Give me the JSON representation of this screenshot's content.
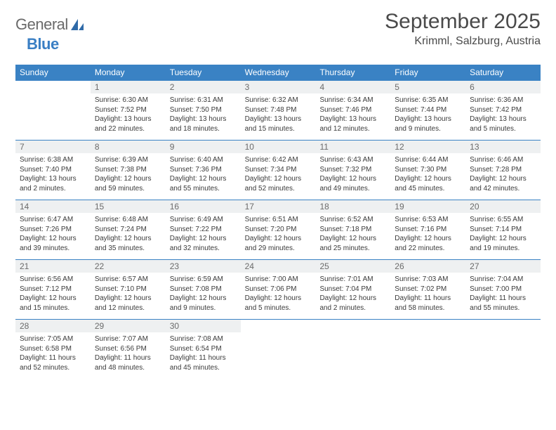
{
  "logo": {
    "word1": "General",
    "word2": "Blue"
  },
  "header": {
    "month_title": "September 2025",
    "location": "Krimml, Salzburg, Austria"
  },
  "colors": {
    "accent": "#3a82c4",
    "daynum_bg": "#eef0f1",
    "text": "#3a3a3a"
  },
  "calendar": {
    "day_names": [
      "Sunday",
      "Monday",
      "Tuesday",
      "Wednesday",
      "Thursday",
      "Friday",
      "Saturday"
    ],
    "weeks": [
      [
        {
          "day": "",
          "sunrise": "",
          "sunset": "",
          "daylight1": "",
          "daylight2": "",
          "empty": true
        },
        {
          "day": "1",
          "sunrise": "Sunrise: 6:30 AM",
          "sunset": "Sunset: 7:52 PM",
          "daylight1": "Daylight: 13 hours",
          "daylight2": "and 22 minutes."
        },
        {
          "day": "2",
          "sunrise": "Sunrise: 6:31 AM",
          "sunset": "Sunset: 7:50 PM",
          "daylight1": "Daylight: 13 hours",
          "daylight2": "and 18 minutes."
        },
        {
          "day": "3",
          "sunrise": "Sunrise: 6:32 AM",
          "sunset": "Sunset: 7:48 PM",
          "daylight1": "Daylight: 13 hours",
          "daylight2": "and 15 minutes."
        },
        {
          "day": "4",
          "sunrise": "Sunrise: 6:34 AM",
          "sunset": "Sunset: 7:46 PM",
          "daylight1": "Daylight: 13 hours",
          "daylight2": "and 12 minutes."
        },
        {
          "day": "5",
          "sunrise": "Sunrise: 6:35 AM",
          "sunset": "Sunset: 7:44 PM",
          "daylight1": "Daylight: 13 hours",
          "daylight2": "and 9 minutes."
        },
        {
          "day": "6",
          "sunrise": "Sunrise: 6:36 AM",
          "sunset": "Sunset: 7:42 PM",
          "daylight1": "Daylight: 13 hours",
          "daylight2": "and 5 minutes."
        }
      ],
      [
        {
          "day": "7",
          "sunrise": "Sunrise: 6:38 AM",
          "sunset": "Sunset: 7:40 PM",
          "daylight1": "Daylight: 13 hours",
          "daylight2": "and 2 minutes."
        },
        {
          "day": "8",
          "sunrise": "Sunrise: 6:39 AM",
          "sunset": "Sunset: 7:38 PM",
          "daylight1": "Daylight: 12 hours",
          "daylight2": "and 59 minutes."
        },
        {
          "day": "9",
          "sunrise": "Sunrise: 6:40 AM",
          "sunset": "Sunset: 7:36 PM",
          "daylight1": "Daylight: 12 hours",
          "daylight2": "and 55 minutes."
        },
        {
          "day": "10",
          "sunrise": "Sunrise: 6:42 AM",
          "sunset": "Sunset: 7:34 PM",
          "daylight1": "Daylight: 12 hours",
          "daylight2": "and 52 minutes."
        },
        {
          "day": "11",
          "sunrise": "Sunrise: 6:43 AM",
          "sunset": "Sunset: 7:32 PM",
          "daylight1": "Daylight: 12 hours",
          "daylight2": "and 49 minutes."
        },
        {
          "day": "12",
          "sunrise": "Sunrise: 6:44 AM",
          "sunset": "Sunset: 7:30 PM",
          "daylight1": "Daylight: 12 hours",
          "daylight2": "and 45 minutes."
        },
        {
          "day": "13",
          "sunrise": "Sunrise: 6:46 AM",
          "sunset": "Sunset: 7:28 PM",
          "daylight1": "Daylight: 12 hours",
          "daylight2": "and 42 minutes."
        }
      ],
      [
        {
          "day": "14",
          "sunrise": "Sunrise: 6:47 AM",
          "sunset": "Sunset: 7:26 PM",
          "daylight1": "Daylight: 12 hours",
          "daylight2": "and 39 minutes."
        },
        {
          "day": "15",
          "sunrise": "Sunrise: 6:48 AM",
          "sunset": "Sunset: 7:24 PM",
          "daylight1": "Daylight: 12 hours",
          "daylight2": "and 35 minutes."
        },
        {
          "day": "16",
          "sunrise": "Sunrise: 6:49 AM",
          "sunset": "Sunset: 7:22 PM",
          "daylight1": "Daylight: 12 hours",
          "daylight2": "and 32 minutes."
        },
        {
          "day": "17",
          "sunrise": "Sunrise: 6:51 AM",
          "sunset": "Sunset: 7:20 PM",
          "daylight1": "Daylight: 12 hours",
          "daylight2": "and 29 minutes."
        },
        {
          "day": "18",
          "sunrise": "Sunrise: 6:52 AM",
          "sunset": "Sunset: 7:18 PM",
          "daylight1": "Daylight: 12 hours",
          "daylight2": "and 25 minutes."
        },
        {
          "day": "19",
          "sunrise": "Sunrise: 6:53 AM",
          "sunset": "Sunset: 7:16 PM",
          "daylight1": "Daylight: 12 hours",
          "daylight2": "and 22 minutes."
        },
        {
          "day": "20",
          "sunrise": "Sunrise: 6:55 AM",
          "sunset": "Sunset: 7:14 PM",
          "daylight1": "Daylight: 12 hours",
          "daylight2": "and 19 minutes."
        }
      ],
      [
        {
          "day": "21",
          "sunrise": "Sunrise: 6:56 AM",
          "sunset": "Sunset: 7:12 PM",
          "daylight1": "Daylight: 12 hours",
          "daylight2": "and 15 minutes."
        },
        {
          "day": "22",
          "sunrise": "Sunrise: 6:57 AM",
          "sunset": "Sunset: 7:10 PM",
          "daylight1": "Daylight: 12 hours",
          "daylight2": "and 12 minutes."
        },
        {
          "day": "23",
          "sunrise": "Sunrise: 6:59 AM",
          "sunset": "Sunset: 7:08 PM",
          "daylight1": "Daylight: 12 hours",
          "daylight2": "and 9 minutes."
        },
        {
          "day": "24",
          "sunrise": "Sunrise: 7:00 AM",
          "sunset": "Sunset: 7:06 PM",
          "daylight1": "Daylight: 12 hours",
          "daylight2": "and 5 minutes."
        },
        {
          "day": "25",
          "sunrise": "Sunrise: 7:01 AM",
          "sunset": "Sunset: 7:04 PM",
          "daylight1": "Daylight: 12 hours",
          "daylight2": "and 2 minutes."
        },
        {
          "day": "26",
          "sunrise": "Sunrise: 7:03 AM",
          "sunset": "Sunset: 7:02 PM",
          "daylight1": "Daylight: 11 hours",
          "daylight2": "and 58 minutes."
        },
        {
          "day": "27",
          "sunrise": "Sunrise: 7:04 AM",
          "sunset": "Sunset: 7:00 PM",
          "daylight1": "Daylight: 11 hours",
          "daylight2": "and 55 minutes."
        }
      ],
      [
        {
          "day": "28",
          "sunrise": "Sunrise: 7:05 AM",
          "sunset": "Sunset: 6:58 PM",
          "daylight1": "Daylight: 11 hours",
          "daylight2": "and 52 minutes."
        },
        {
          "day": "29",
          "sunrise": "Sunrise: 7:07 AM",
          "sunset": "Sunset: 6:56 PM",
          "daylight1": "Daylight: 11 hours",
          "daylight2": "and 48 minutes."
        },
        {
          "day": "30",
          "sunrise": "Sunrise: 7:08 AM",
          "sunset": "Sunset: 6:54 PM",
          "daylight1": "Daylight: 11 hours",
          "daylight2": "and 45 minutes."
        },
        {
          "day": "",
          "sunrise": "",
          "sunset": "",
          "daylight1": "",
          "daylight2": "",
          "empty": true
        },
        {
          "day": "",
          "sunrise": "",
          "sunset": "",
          "daylight1": "",
          "daylight2": "",
          "empty": true
        },
        {
          "day": "",
          "sunrise": "",
          "sunset": "",
          "daylight1": "",
          "daylight2": "",
          "empty": true
        },
        {
          "day": "",
          "sunrise": "",
          "sunset": "",
          "daylight1": "",
          "daylight2": "",
          "empty": true
        }
      ]
    ]
  }
}
